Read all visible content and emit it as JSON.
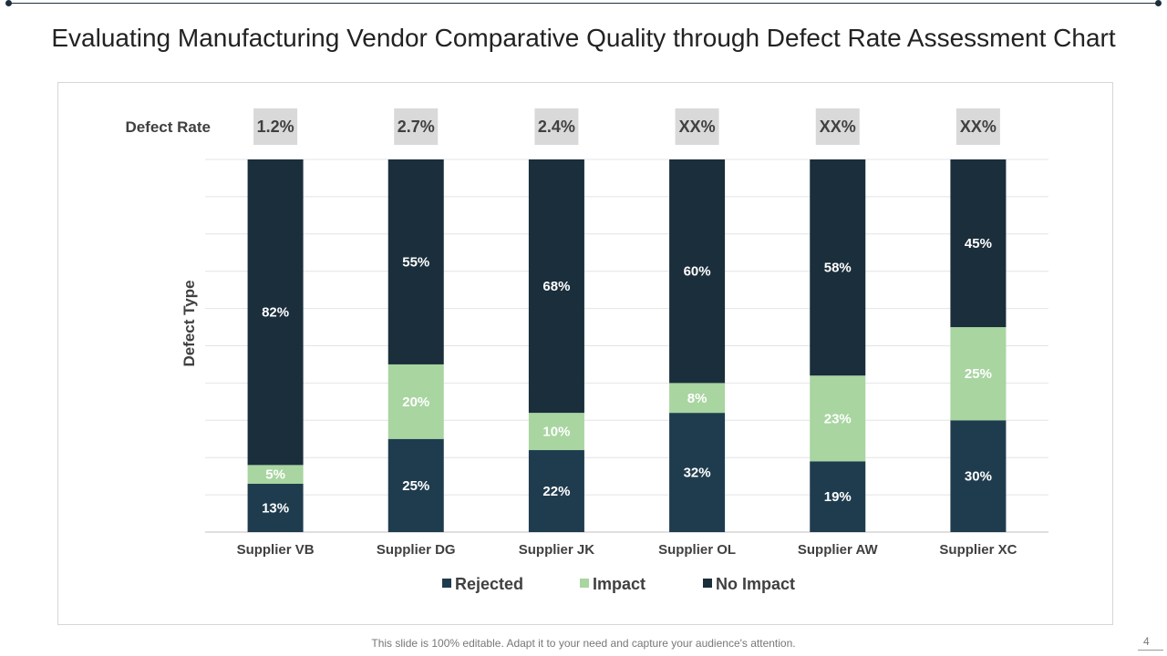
{
  "title": "Evaluating Manufacturing Vendor Comparative Quality through Defect Rate Assessment Chart",
  "footer": "This slide is 100% editable. Adapt it to your need and capture your audience's attention.",
  "page_number": "4",
  "colors": {
    "rejected": "#1f3c4e",
    "impact": "#a8d5a0",
    "no_impact": "#1a2e3b",
    "rate_box": "#d9d9d9",
    "grid": "#e4e4e4"
  },
  "chart_data": {
    "type": "bar",
    "stacked": true,
    "percent_stacked": true,
    "categories": [
      "Supplier VB",
      "Supplier DG",
      "Supplier JK",
      "Supplier OL",
      "Supplier AW",
      "Supplier XC"
    ],
    "series": [
      {
        "name": "Rejected",
        "values": [
          13,
          25,
          22,
          32,
          19,
          30
        ],
        "labels": [
          "13%",
          "25%",
          "22%",
          "32%",
          "19%",
          "30%"
        ]
      },
      {
        "name": "Impact",
        "values": [
          5,
          20,
          10,
          8,
          23,
          25
        ],
        "labels": [
          "5%",
          "20%",
          "10%",
          "8%",
          "23%",
          "25%"
        ]
      },
      {
        "name": "No Impact",
        "values": [
          82,
          55,
          68,
          60,
          58,
          45
        ],
        "labels": [
          "82%",
          "55%",
          "68%",
          "60%",
          "58%",
          "45%"
        ]
      }
    ],
    "ylabel": "Defect Type",
    "xlabel": "",
    "ylim": [
      0,
      100
    ],
    "grid": true,
    "legend": "bottom",
    "defect_rate_label": "Defect Rate",
    "defect_rates": [
      "1.2%",
      "2.7%",
      "2.4%",
      "XX%",
      "XX%",
      "XX%"
    ]
  }
}
